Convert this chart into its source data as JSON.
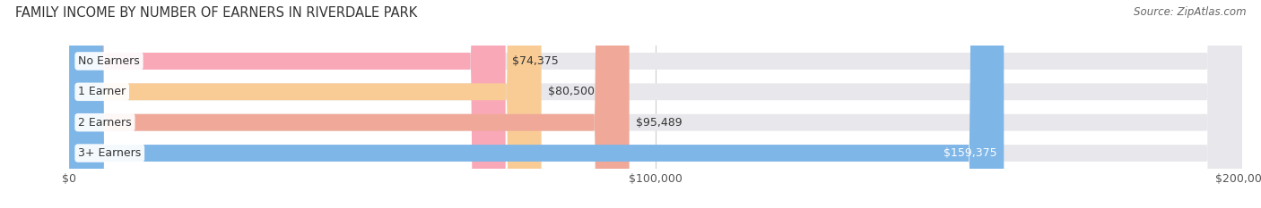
{
  "title": "FAMILY INCOME BY NUMBER OF EARNERS IN RIVERDALE PARK",
  "source": "Source: ZipAtlas.com",
  "categories": [
    "No Earners",
    "1 Earner",
    "2 Earners",
    "3+ Earners"
  ],
  "values": [
    74375,
    80500,
    95489,
    159375
  ],
  "bar_colors": [
    "#F9A8B8",
    "#F9CC96",
    "#F0A898",
    "#7EB6E8"
  ],
  "label_colors": [
    "#444444",
    "#444444",
    "#444444",
    "#ffffff"
  ],
  "xmax": 200000,
  "background_color": "#ffffff",
  "bar_background_color": "#e8e8ec",
  "title_fontsize": 10.5,
  "source_fontsize": 8.5,
  "tick_label_fontsize": 9,
  "bar_label_fontsize": 9,
  "category_fontsize": 9
}
